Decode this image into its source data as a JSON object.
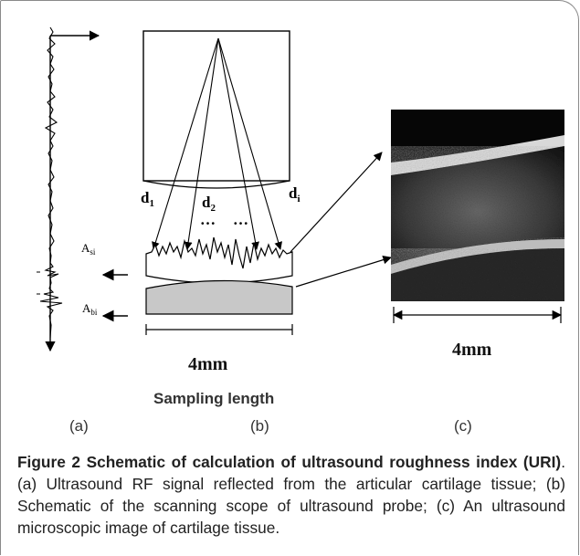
{
  "figure": {
    "labels": {
      "d1": "d",
      "d1_sub": "1",
      "d2": "d",
      "d2_sub": "2",
      "di": "d",
      "di_sub": "i",
      "dots_left": "…",
      "dots_right": "…",
      "asi": "A",
      "asi_sub": "si",
      "abi": "A",
      "abi_sub": "bi",
      "width_b": "4mm",
      "width_c": "4mm",
      "sampling_length": "Sampling length",
      "panel_a": "(a)",
      "panel_b": "(b)",
      "panel_c": "(c)"
    },
    "caption": {
      "title": "Figure 2 Schematic of calculation of ultrasound roughness index (URI)",
      "body": ". (a) Ultrasound RF signal reflected from the articular cartilage tissue; (b) Schematic of the scanning scope of ultrasound probe; (c) An ultrasound microscopic image of cartilage tissue."
    }
  }
}
